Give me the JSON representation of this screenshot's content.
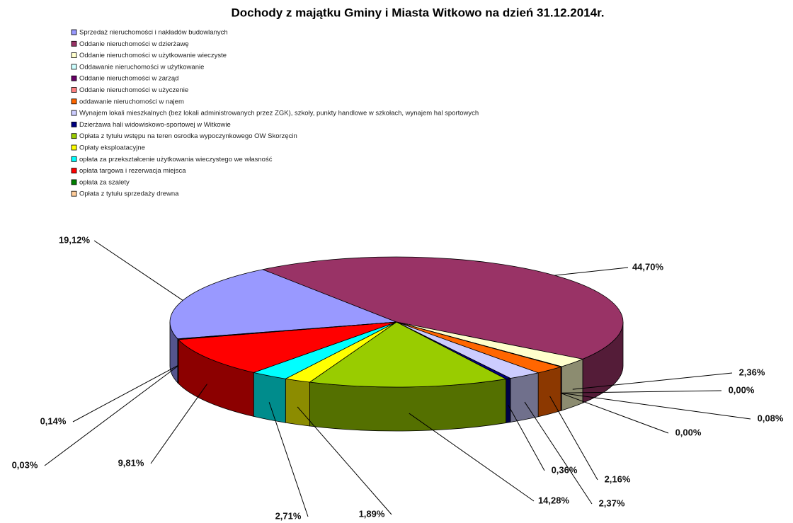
{
  "chart_data": {
    "type": "pie3d",
    "title": "Dochody z majątku Gminy i Miasta Witkowo na dzień 31.12.2014r.",
    "categories": [
      "Sprzedaż nieruchomości i nakładów budowlanych",
      "Oddanie nieruchomości w dzierżawę",
      "Oddanie nieruchomości w użytkowanie wieczyste",
      "Oddawanie nieruchomości w użytkowanie",
      "Oddanie nieruchomości w zarząd",
      "Oddanie nieruchomości w użyczenie",
      "oddawanie nieruchomości w najem",
      "Wynajem lokali mieszkalnych (bez lokali administrowanych przez ZGK), szkoły, punkty handlowe w szkołach, wynajem hal sportowych",
      "Dzierżawa hali widowiskowo-sportowej w Witkowie",
      "Opłata z tytułu wstępu na teren osrodka wypoczynkowego OW Skorzęcin",
      "Opłaty eksploatacyjne",
      "opłata za przekształcenie użytkowania wieczystego we własność",
      "opłata targowa i rezerwacja miejsca",
      "opłata za szalety",
      "Opłata z tytułu sprzedaży drewna"
    ],
    "values": [
      19.12,
      44.7,
      2.36,
      0.0,
      0.08,
      0.0,
      2.16,
      2.37,
      0.36,
      14.28,
      1.89,
      2.71,
      9.81,
      0.03,
      0.14
    ],
    "value_labels": [
      "19,12%",
      "44,70%",
      "2,36%",
      "0,00%",
      "0,08%",
      "0,00%",
      "2,16%",
      "2,37%",
      "0,36%",
      "14,28%",
      "1,89%",
      "2,71%",
      "9,81%",
      "0,03%",
      "0,14%"
    ],
    "colors": [
      "#9999ff",
      "#993366",
      "#ffffcc",
      "#ccffff",
      "#660066",
      "#ff8080",
      "#ff6600",
      "#ccccff",
      "#000080",
      "#99cc00",
      "#ffff00",
      "#00ffff",
      "#ff0000",
      "#008000",
      "#ffcc99"
    ]
  }
}
